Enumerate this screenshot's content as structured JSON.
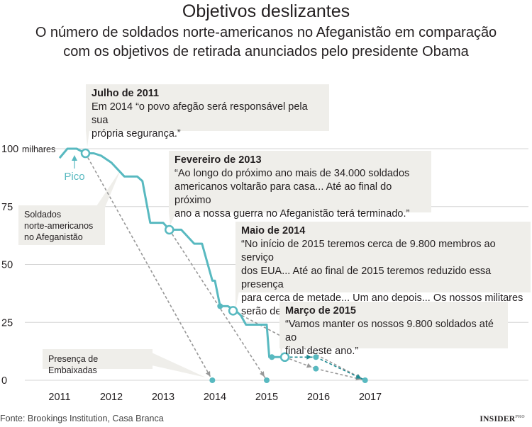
{
  "header": {
    "title": "Objetivos deslizantes",
    "subtitle": "O número de soldados norte-americanos no Afeganistão em comparação\ncom os objetivos de retirada anunciados pelo presidente Obama"
  },
  "source": "Fonte: Brookings Institution, Casa Branca",
  "logo": {
    "main": "INSIDER",
    "sup": "PRO"
  },
  "colors": {
    "troops": "#58b9c0",
    "projection": "#999999",
    "projection_future": "#1e8b93",
    "box": "#efeeea"
  },
  "chart_data": {
    "type": "line",
    "xlim": [
      2010.5,
      2017.4
    ],
    "ylim": [
      0,
      100
    ],
    "x_ticks": [
      2011,
      2012,
      2013,
      2014,
      2015,
      2016,
      2017
    ],
    "y_ticks": [
      0,
      25,
      50,
      75,
      100
    ],
    "y_tick_labels": [
      "0",
      "25",
      "50",
      "75",
      "100"
    ],
    "y_unit": "milhares",
    "series": [
      {
        "name": "Soldados norte-americanos no Afeganistão",
        "x": [
          2011.0,
          2011.15,
          2011.33,
          2011.5,
          2011.66,
          2011.8,
          2012.0,
          2012.25,
          2012.5,
          2012.6,
          2012.75,
          2013.0,
          2013.12,
          2013.35,
          2013.6,
          2013.75,
          2013.95,
          2014.0,
          2014.1,
          2014.25,
          2014.4,
          2014.5,
          2014.6,
          2014.75,
          2015.0,
          2015.05,
          2015.2,
          2015.35
        ],
        "y": [
          96,
          100,
          100,
          98,
          98,
          97,
          94,
          88,
          88,
          86,
          68,
          68,
          65,
          65,
          59,
          59,
          43,
          43,
          32,
          32,
          30,
          28,
          24,
          24,
          24,
          10,
          10,
          10
        ]
      }
    ],
    "markers": [
      {
        "x": 2011.5,
        "y": 98,
        "style": "hollow"
      },
      {
        "x": 2013.12,
        "y": 65,
        "style": "hollow"
      },
      {
        "x": 2014.35,
        "y": 30,
        "style": "hollow"
      },
      {
        "x": 2015.35,
        "y": 10,
        "style": "hollow"
      },
      {
        "x": 2014.1,
        "y": 32,
        "style": "solid"
      },
      {
        "x": 2015.1,
        "y": 10,
        "style": "solid"
      },
      {
        "x": 2013.95,
        "y": 0,
        "style": "solid"
      },
      {
        "x": 2015.0,
        "y": 0,
        "style": "solid"
      },
      {
        "x": 2015.95,
        "y": 10,
        "style": "solid"
      },
      {
        "x": 2015.95,
        "y": 5,
        "style": "solid"
      },
      {
        "x": 2016.9,
        "y": 0,
        "style": "solid"
      }
    ],
    "projections": [
      {
        "from": [
          2011.5,
          98
        ],
        "to": [
          2013.95,
          0
        ],
        "style": "gray"
      },
      {
        "from": [
          2013.12,
          65
        ],
        "to": [
          2015.0,
          0
        ],
        "style": "gray"
      },
      {
        "from": [
          2014.35,
          30
        ],
        "to": [
          2016.9,
          0
        ],
        "style": "gray"
      },
      {
        "from": [
          2015.35,
          10
        ],
        "to": [
          2015.95,
          5
        ],
        "style": "gray"
      },
      {
        "from": [
          2015.95,
          5
        ],
        "to": [
          2016.9,
          0
        ],
        "style": "gray"
      },
      {
        "from": [
          2015.35,
          10
        ],
        "to": [
          2015.95,
          10
        ],
        "style": "teal"
      },
      {
        "from": [
          2015.95,
          10
        ],
        "to": [
          2016.9,
          0
        ],
        "style": "teal"
      }
    ],
    "peak_label": "Pico",
    "annotations": [
      {
        "heading": "Julho de 2011",
        "text": "Em 2014 “o povo afegão será responsável pela sua\nprópria segurança.”"
      },
      {
        "heading": "Fevereiro de 2013",
        "text": "“Ao longo do próximo ano mais de 34.000 soldados\namericanos voltarão para casa... Até ao final do próximo\nano a nossa guerra no Afeganistão terá terminado.”"
      },
      {
        "heading": "Maio de 2014",
        "text": "“No início de 2015 teremos cerca de 9.800 membros ao serviço\ndos EUA... Até ao final de 2015 teremos reduzido essa presença\npara cerca de metade... Um ano depois... Os nossos militares\nserão destacados para a normal presença de embaixada.”"
      },
      {
        "heading": "Março de 2015",
        "text": " “Vamos manter os nossos 9.800 soldados até ao\nfinal deste ano.”"
      }
    ],
    "labels": {
      "troops": "Soldados\nnorte-americanos\nno Afeganistão",
      "embassy": "Presença de Embaixadas"
    }
  }
}
